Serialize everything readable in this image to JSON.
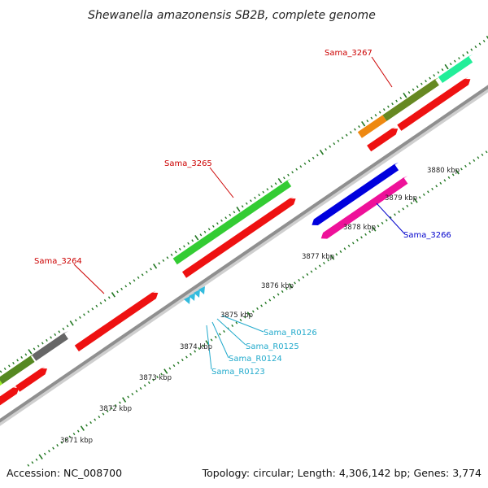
{
  "title": "Shewanella amazonensis SB2B, complete genome",
  "footer": {
    "accession": "Accession: NC_008700",
    "summary": "Topology: circular; Length: 4,306,142 bp; Genes: 3,774"
  },
  "colors": {
    "backbone": "#999999",
    "forward_label": "#cc0000",
    "reverse_label": "#0000cc",
    "rna_label": "#22aacc",
    "tick": "#227722"
  },
  "kbp_labels": [
    "3871 kbp",
    "3872 kbp",
    "3873 kbp",
    "3874 kbp",
    "3875 kbp",
    "3876 kbp",
    "3877 kbp",
    "3878 kbp",
    "3879 kbp",
    "3880 kbp"
  ],
  "gene_labels": {
    "sama_3264": "Sama_3264",
    "sama_3265": "Sama_3265",
    "sama_3266": "Sama_3266",
    "sama_3267": "Sama_3267",
    "sama_r0123": "Sama_R0123",
    "sama_r0124": "Sama_R0124",
    "sama_r0125": "Sama_R0125",
    "sama_r0126": "Sama_R0126"
  }
}
